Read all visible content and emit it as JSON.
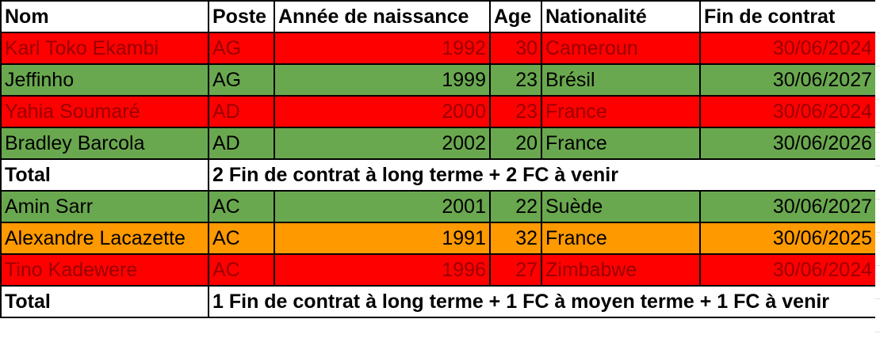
{
  "columns": [
    "Nom",
    "Poste",
    "Année de naissance",
    "Age",
    "Nationalité",
    "Fin de contrat"
  ],
  "colors": {
    "red": "#ff0000",
    "red_text": "#990000",
    "green": "#6aa84f",
    "orange": "#ff9900"
  },
  "players_a": [
    {
      "nom": "Karl Toko Ekambi",
      "poste": "AG",
      "annee": "1992",
      "age": "30",
      "nat": "Cameroun",
      "fin": "30/06/2024",
      "status": "red"
    },
    {
      "nom": "Jeffinho",
      "poste": "AG",
      "annee": "1999",
      "age": "23",
      "nat": "Brésil",
      "fin": "30/06/2027",
      "status": "green"
    },
    {
      "nom": "Yahia Soumaré",
      "poste": "AD",
      "annee": "2000",
      "age": "23",
      "nat": "France",
      "fin": "30/06/2024",
      "status": "red"
    },
    {
      "nom": "Bradley Barcola",
      "poste": "AD",
      "annee": "2002",
      "age": "20",
      "nat": "France",
      "fin": "30/06/2026",
      "status": "green"
    }
  ],
  "total_a": {
    "label": "Total",
    "text": "2 Fin de contrat à long terme + 2 FC à venir"
  },
  "players_b": [
    {
      "nom": "Amin Sarr",
      "poste": "AC",
      "annee": "2001",
      "age": "22",
      "nat": "Suède",
      "fin": "30/06/2027",
      "status": "green"
    },
    {
      "nom": "Alexandre Lacazette",
      "poste": "AC",
      "annee": "1991",
      "age": "32",
      "nat": "France",
      "fin": "30/06/2025",
      "status": "orange"
    },
    {
      "nom": "Tino Kadewere",
      "poste": "AC",
      "annee": "1996",
      "age": "27",
      "nat": "Zimbabwe",
      "fin": "30/06/2024",
      "status": "red"
    }
  ],
  "total_b": {
    "label": "Total",
    "text": "1 Fin de contrat à long terme + 1 FC à moyen terme + 1 FC à venir"
  }
}
